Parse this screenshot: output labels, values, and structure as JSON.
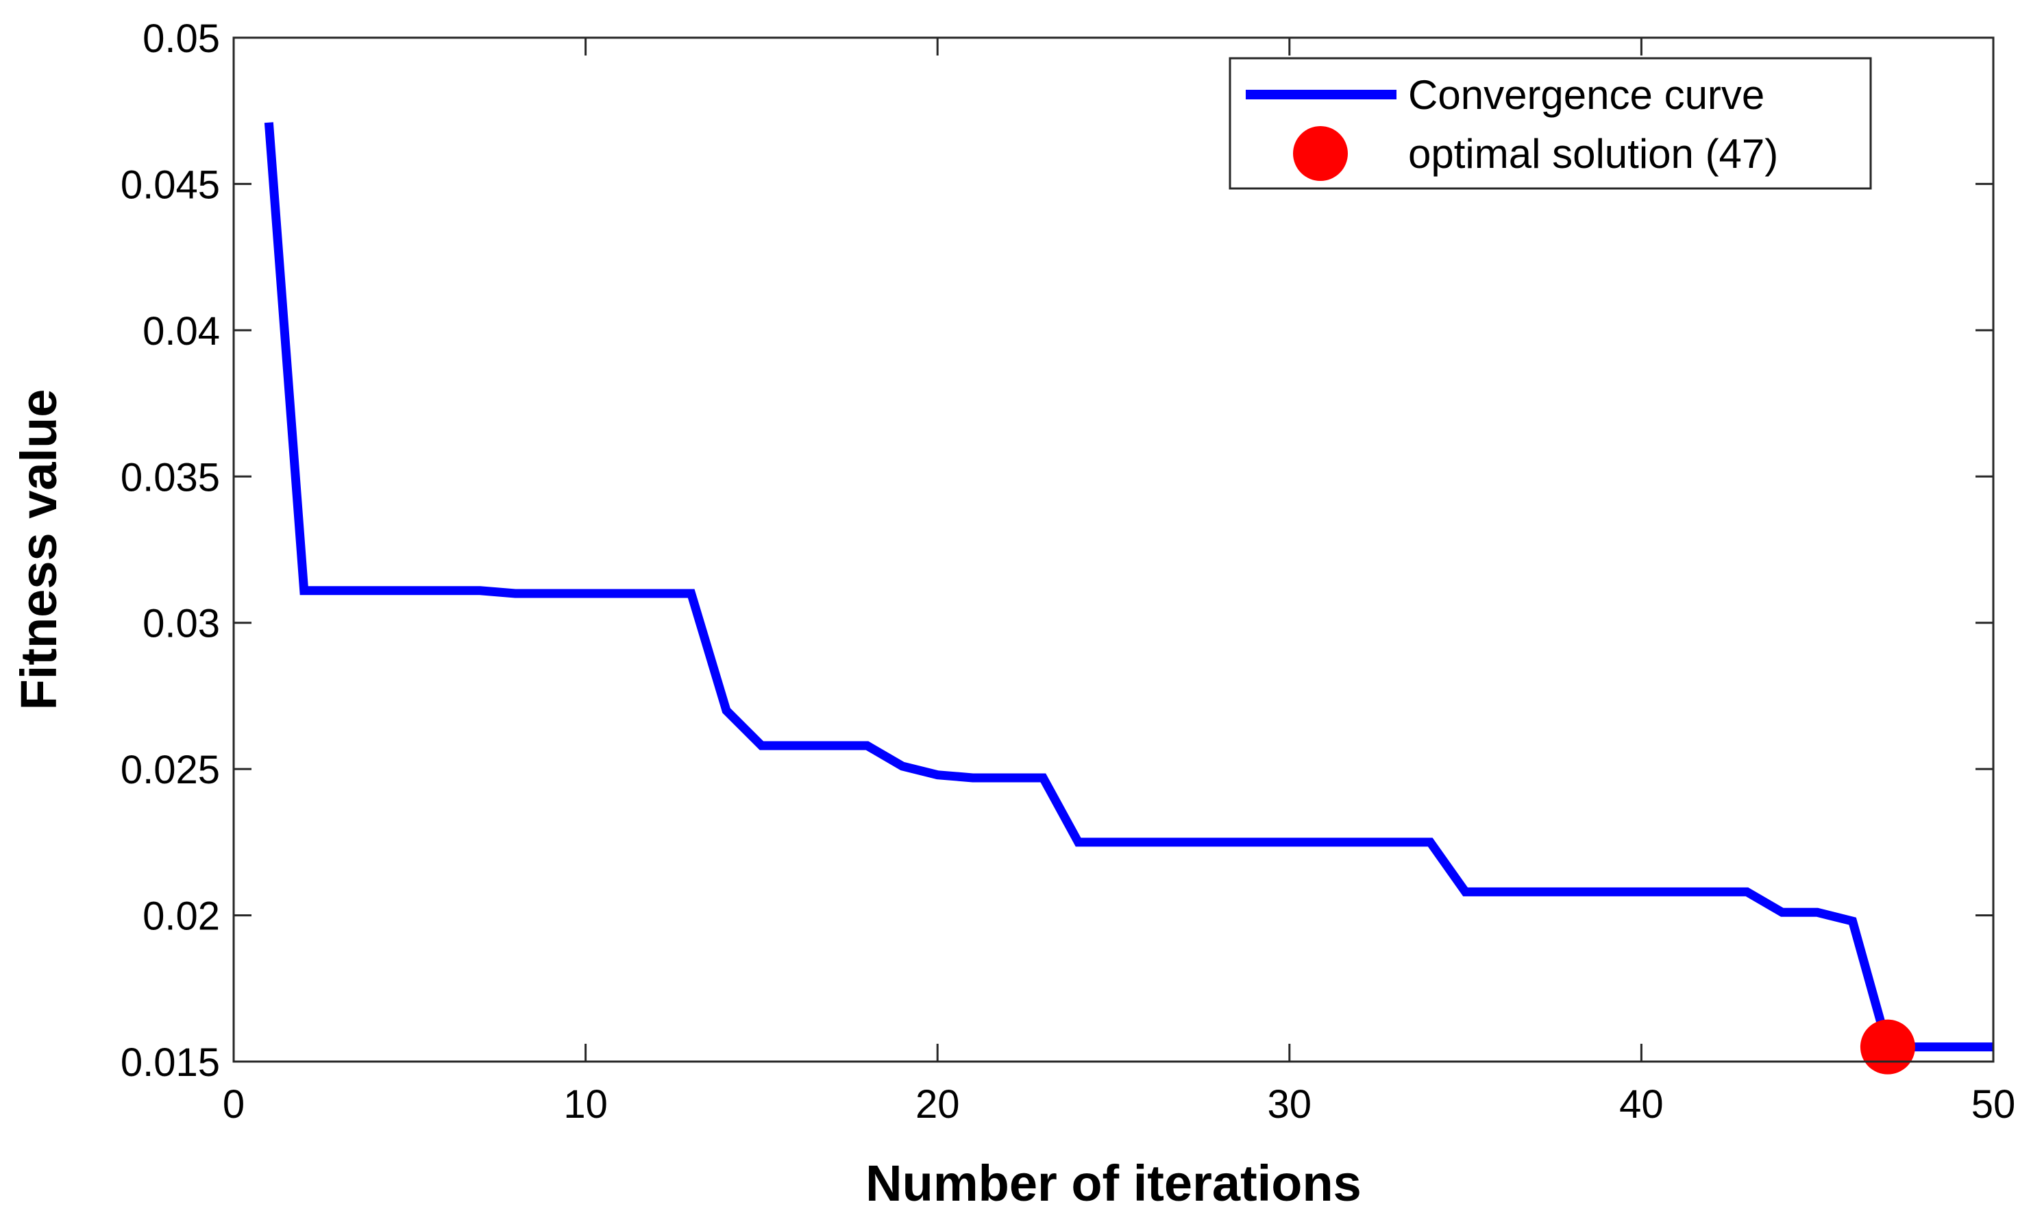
{
  "chart_data": {
    "type": "line",
    "title": "",
    "xlabel": "Number of iterations",
    "ylabel": "Fitness value",
    "xlim": [
      0,
      50
    ],
    "ylim": [
      0.015,
      0.05
    ],
    "xticks": [
      0,
      10,
      20,
      30,
      40,
      50
    ],
    "xtick_labels": [
      "0",
      "10",
      "20",
      "30",
      "40",
      "50"
    ],
    "yticks": [
      0.015,
      0.02,
      0.025,
      0.03,
      0.035,
      0.04,
      0.045,
      0.05
    ],
    "ytick_labels": [
      "0.015",
      "0.02",
      "0.025",
      "0.03",
      "0.035",
      "0.04",
      "0.045",
      "0.05"
    ],
    "grid": false,
    "legend_position": "top-right",
    "series": [
      {
        "name": "Convergence curve",
        "color": "#0000ff",
        "x": [
          1,
          2,
          3,
          4,
          5,
          6,
          7,
          8,
          9,
          10,
          11,
          12,
          13,
          14,
          15,
          16,
          17,
          18,
          19,
          20,
          21,
          22,
          23,
          24,
          25,
          26,
          27,
          28,
          29,
          30,
          31,
          32,
          33,
          34,
          35,
          36,
          37,
          38,
          39,
          40,
          41,
          42,
          43,
          44,
          45,
          46,
          47,
          48,
          49,
          50
        ],
        "y": [
          0.0471,
          0.0311,
          0.0311,
          0.0311,
          0.0311,
          0.0311,
          0.0311,
          0.031,
          0.031,
          0.031,
          0.031,
          0.031,
          0.031,
          0.027,
          0.0258,
          0.0258,
          0.0258,
          0.0258,
          0.0251,
          0.0248,
          0.0247,
          0.0247,
          0.0247,
          0.0225,
          0.0225,
          0.0225,
          0.0225,
          0.0225,
          0.0225,
          0.0225,
          0.0225,
          0.0225,
          0.0225,
          0.0225,
          0.0208,
          0.0208,
          0.0208,
          0.0208,
          0.0208,
          0.0208,
          0.0208,
          0.0208,
          0.0208,
          0.0201,
          0.0201,
          0.0198,
          0.0155,
          0.0155,
          0.0155,
          0.0155
        ]
      },
      {
        "name": "optimal solution (47)",
        "color": "#ff0000",
        "marker": "circle",
        "x": [
          47
        ],
        "y": [
          0.0155
        ]
      }
    ]
  }
}
